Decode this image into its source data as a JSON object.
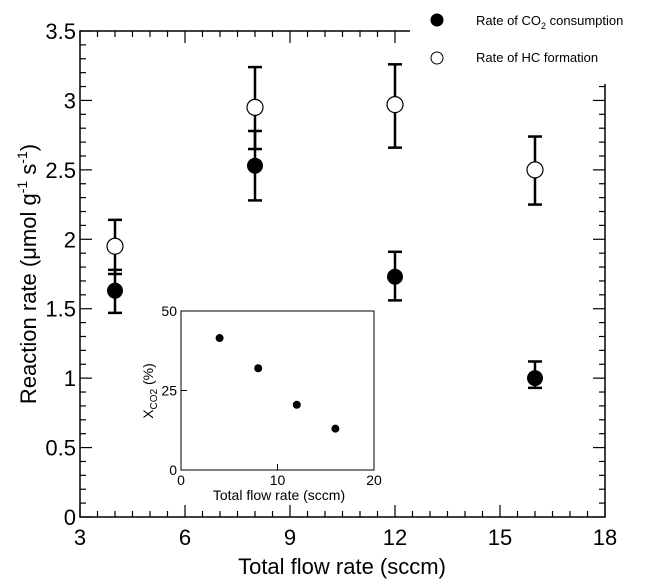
{
  "chart_data": [
    {
      "type": "scatter",
      "title": "",
      "xlabel": "Total flow rate (sccm)",
      "ylabel": "Reaction rate (μmol g⁻¹ s⁻¹)",
      "ylabel_parts": {
        "base": "Reaction rate (μmol g",
        "sup1": "-1",
        "mid": " s",
        "sup2": "-1",
        "end": ")"
      },
      "xlim": [
        3,
        18
      ],
      "ylim": [
        0,
        3.5
      ],
      "xticks": [
        3,
        6,
        9,
        12,
        15,
        18
      ],
      "xtick_labels": [
        "3",
        "6",
        "9",
        "12",
        "15",
        "18"
      ],
      "yticks": [
        0,
        0.5,
        1,
        1.5,
        2,
        2.5,
        3,
        3.5
      ],
      "ytick_labels": [
        "0",
        "0.5",
        "1",
        "1.5",
        "2",
        "2.5",
        "3",
        "3.5"
      ],
      "grid": false,
      "legend": "top-right",
      "series": [
        {
          "name": "Rate of CO₂ consumption",
          "name_parts": {
            "base": "Rate of CO",
            "sub": "2",
            "end": " consumption"
          },
          "marker": "filled-circle",
          "color": "#000000",
          "x": [
            4,
            8,
            12,
            16
          ],
          "y": [
            1.63,
            2.53,
            1.73,
            1.0
          ],
          "err_low": [
            1.47,
            2.28,
            1.56,
            0.93
          ],
          "err_high": [
            1.78,
            2.78,
            1.91,
            1.12
          ]
        },
        {
          "name": "Rate of HC formation",
          "marker": "open-circle",
          "color": "#000000",
          "x": [
            4,
            8,
            12,
            16
          ],
          "y": [
            1.95,
            2.95,
            2.97,
            2.5
          ],
          "err_low": [
            1.75,
            2.65,
            2.66,
            2.25
          ],
          "err_high": [
            2.14,
            3.24,
            3.26,
            2.74
          ]
        }
      ]
    },
    {
      "type": "scatter",
      "title": "",
      "xlabel": "Total flow rate (sccm)",
      "ylabel": "X_CO2 (%)",
      "ylabel_parts": {
        "base": "X",
        "sub": "CO2",
        "end": " (%)"
      },
      "xlim": [
        0,
        20
      ],
      "ylim": [
        0,
        50
      ],
      "xticks": [
        0,
        10,
        20
      ],
      "xtick_labels": [
        "0",
        "10",
        "20"
      ],
      "yticks": [
        0,
        25,
        50
      ],
      "ytick_labels": [
        "0",
        "25",
        "50"
      ],
      "grid": false,
      "series": [
        {
          "marker": "filled-circle",
          "color": "#000000",
          "x": [
            4,
            8,
            12,
            16
          ],
          "y": [
            41.5,
            32,
            20.5,
            13
          ]
        }
      ]
    }
  ]
}
